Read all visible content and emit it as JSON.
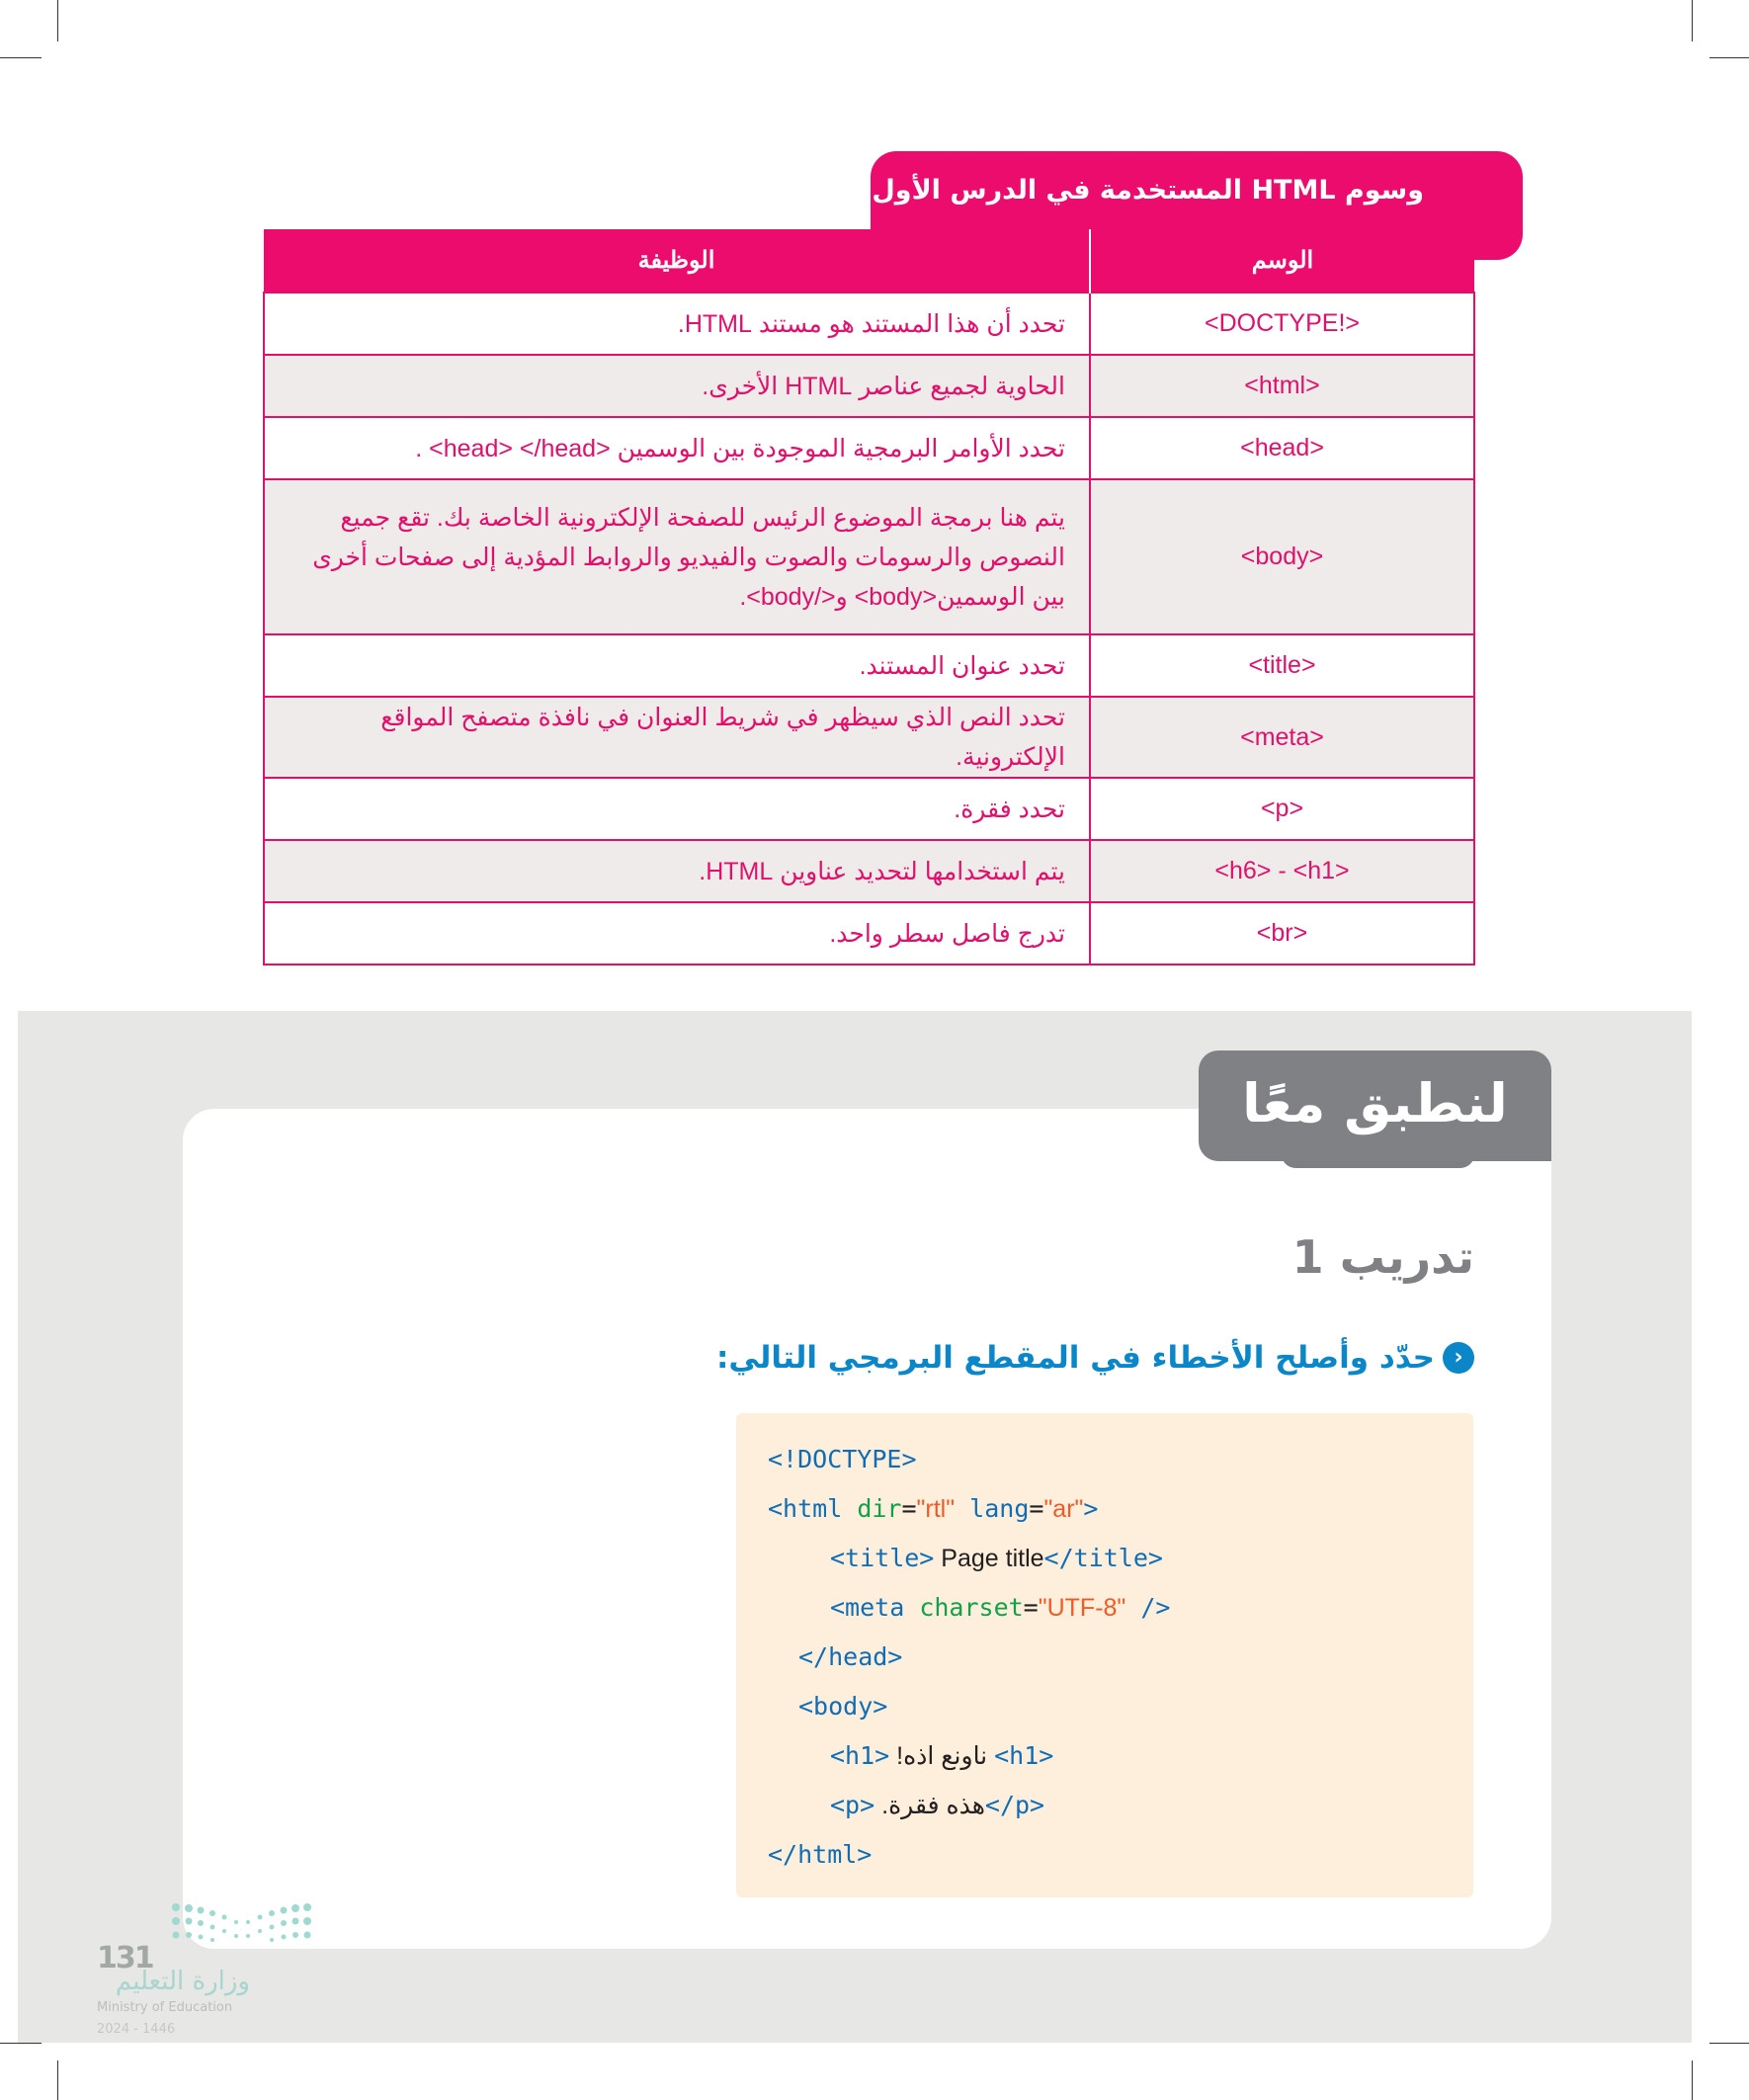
{
  "table": {
    "caption": "وسوم HTML المستخدمة في الدرس الأول",
    "headers": {
      "tag": "الوسم",
      "function": "الوظيفة"
    },
    "rows": [
      {
        "tag": "<!DOCTYPE>",
        "function": "تحدد أن هذا المستند هو مستند HTML."
      },
      {
        "tag": "<html>",
        "function": "الحاوية لجميع عناصر HTML الأخرى."
      },
      {
        "tag": "<head>",
        "function": "تحدد الأوامر البرمجية الموجودة بين الوسمين <head> </head> ."
      },
      {
        "tag": "<body>",
        "function": "يتم هنا برمجة الموضوع الرئيس للصفحة الإلكترونية الخاصة بك. تقع جميع النصوص والرسومات والصوت والفيديو والروابط المؤدية إلى صفحات أخرى بين الوسمين<body> و</body>."
      },
      {
        "tag": "<title>",
        "function": "تحدد عنوان المستند."
      },
      {
        "tag": "<meta>",
        "function": "تحدد النص الذي سيظهر في شريط العنوان في نافذة متصفح المواقع الإلكترونية."
      },
      {
        "tag": "<p>",
        "function": "تحدد فقرة."
      },
      {
        "tag": "<h6> - <h1>",
        "function": "يتم استخدامها لتحديد عناوين HTML."
      },
      {
        "tag": "<br>",
        "function": "تدرج فاصل سطر واحد."
      }
    ]
  },
  "section": {
    "badge": "لنطبق معًا",
    "exercise_title": "تدريب 1",
    "instruction": "حدّد وأصلح الأخطاء في المقطع البرمجي التالي:",
    "instruction_icon": "chevron-circle-icon",
    "code": {
      "l1": "<!DOCTYPE>",
      "l2_tag": "<html ",
      "l2_attr1": "dir",
      "l2_eq": "=",
      "l2_val1": "\"rtl\"",
      "l2_attr2": " lang",
      "l2_val2": "\"ar\"",
      "l2_end": ">",
      "l3_open": "<title>",
      "l3_text": " Page title",
      "l3_close": "</title>",
      "l4_tag": "<meta ",
      "l4_attr": "charset",
      "l4_val": "\"UTF-8\"",
      "l4_end": " />",
      "l5": "</head>",
      "l6": "<body>",
      "l7_open": "<h1>",
      "l7_text": " !هذا عنوان ",
      "l7_close": "<h1>",
      "l8_open": "<p>",
      "l8_text": " .هذه فقرة",
      "l8_close": "</p>",
      "l9": "</html>"
    }
  },
  "footer": {
    "page_number": "131",
    "ministry_ar": "وزارة التعليم",
    "ministry_en": "Ministry of Education",
    "year": "2024 - 1446"
  },
  "colors": {
    "accent": "#ec0c6e",
    "section_gray": "#808185",
    "instruction_blue": "#0a86c9",
    "code_bg": "#fdefdb"
  }
}
